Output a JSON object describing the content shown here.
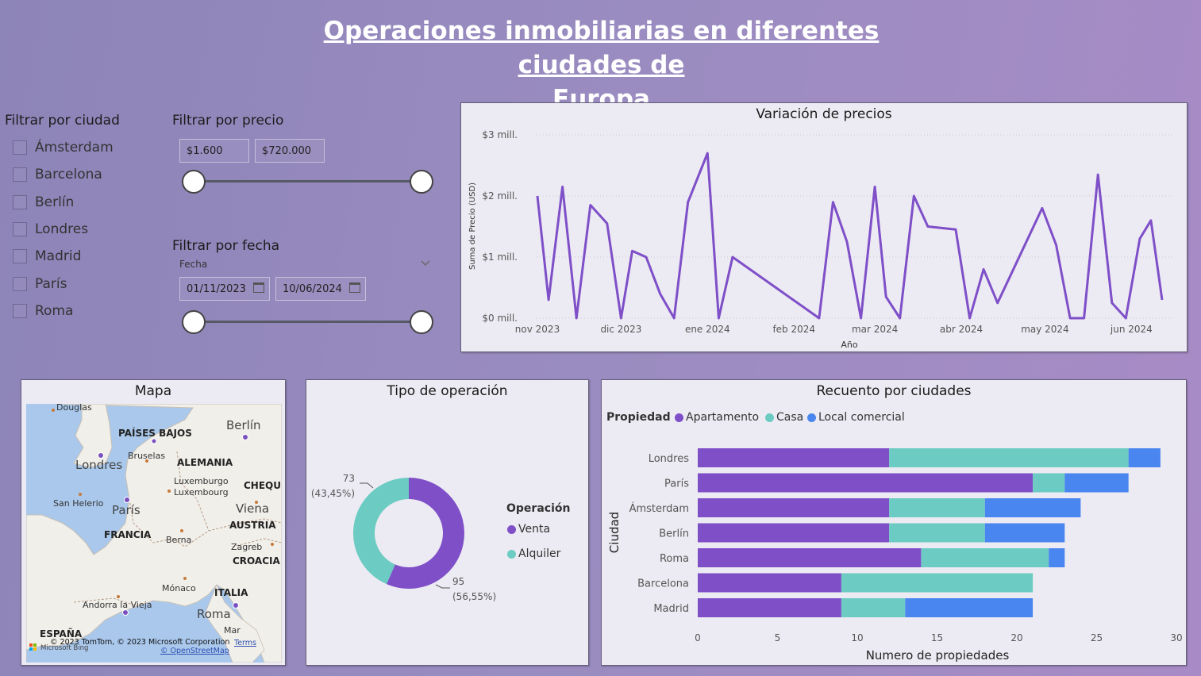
{
  "title_line1": "Operaciones inmobiliarias en diferentes ciudades de ",
  "title_line2": "Europa",
  "filters": {
    "city": {
      "label": "Filtrar por ciudad",
      "items": [
        "Ámsterdam",
        "Barcelona",
        "Berlín",
        "Londres",
        "Madrid",
        "París",
        "Roma"
      ]
    },
    "price": {
      "label": "Filtrar por precio",
      "min": "$1.600",
      "max": "$720.000"
    },
    "date": {
      "label": "Filtrar por fecha",
      "sublabel": "Fecha",
      "start": "01/11/2023",
      "end": "10/06/2024"
    }
  },
  "line_chart": {
    "title": "Variación de precios",
    "chart_data": {
      "type": "line",
      "title": "Variación de precios",
      "xlabel": "Año",
      "ylabel": "Suma de Precio (USD)",
      "y_ticks": [
        "$0 mill.",
        "$1 mill.",
        "$2 mill.",
        "$3 mill."
      ],
      "x_ticks": [
        "nov 2023",
        "dic 2023",
        "ene 2024",
        "feb 2024",
        "mar 2024",
        "abr 2024",
        "may 2024",
        "jun 2024"
      ],
      "ylim": [
        0,
        3
      ],
      "y_unit": "mill. USD",
      "color": "#7f4fc8",
      "points": [
        [
          "2023-11-01",
          2.0
        ],
        [
          "2023-11-05",
          0.3
        ],
        [
          "2023-11-10",
          2.15
        ],
        [
          "2023-11-15",
          0.0
        ],
        [
          "2023-11-20",
          1.85
        ],
        [
          "2023-11-26",
          1.55
        ],
        [
          "2023-12-01",
          0.0
        ],
        [
          "2023-12-05",
          1.1
        ],
        [
          "2023-12-10",
          1.0
        ],
        [
          "2023-12-15",
          0.4
        ],
        [
          "2023-12-20",
          0.0
        ],
        [
          "2023-12-25",
          1.9
        ],
        [
          "2024-01-01",
          2.7
        ],
        [
          "2024-01-05",
          0.0
        ],
        [
          "2024-01-10",
          1.0
        ],
        [
          "2024-02-10",
          0.0
        ],
        [
          "2024-02-15",
          1.9
        ],
        [
          "2024-02-20",
          1.25
        ],
        [
          "2024-02-25",
          0.0
        ],
        [
          "2024-03-01",
          2.15
        ],
        [
          "2024-03-05",
          0.35
        ],
        [
          "2024-03-10",
          0.0
        ],
        [
          "2024-03-15",
          2.0
        ],
        [
          "2024-03-20",
          1.5
        ],
        [
          "2024-03-30",
          1.45
        ],
        [
          "2024-04-04",
          0.0
        ],
        [
          "2024-04-09",
          0.8
        ],
        [
          "2024-04-14",
          0.25
        ],
        [
          "2024-04-30",
          1.8
        ],
        [
          "2024-05-05",
          1.2
        ],
        [
          "2024-05-10",
          0.0
        ],
        [
          "2024-05-15",
          0.0
        ],
        [
          "2024-05-20",
          2.35
        ],
        [
          "2024-05-25",
          0.25
        ],
        [
          "2024-05-30",
          0.0
        ],
        [
          "2024-06-04",
          1.3
        ],
        [
          "2024-06-08",
          1.6
        ],
        [
          "2024-06-12",
          0.3
        ]
      ]
    }
  },
  "map": {
    "title": "Mapa",
    "cities": [
      "Berlín",
      "Londres",
      "París",
      "Viena",
      "Roma"
    ],
    "countries": [
      "PAÍSES BAJOS",
      "ALEMANIA",
      "FRANCIA",
      "AUSTRIA",
      "CROACIA",
      "ITALIA",
      "ESPAÑA",
      "CHEQUI"
    ],
    "places": [
      "Douglas",
      "Bruselas",
      "Luxemburgo",
      "Luxembourg",
      "San Helerio",
      "Berna",
      "Zagreb",
      "Mónaco",
      "Andorra la Vieja",
      "Mar"
    ],
    "copyright": "© 2023 TomTom, © 2023 Microsoft Corporation",
    "terms": "Terms",
    "osm": "© OpenStreetMap",
    "bing": "Microsoft Bing",
    "water_color": "#a9c8ec",
    "land_color": "#f1efea"
  },
  "donut": {
    "title": "Tipo de operación",
    "legend_title": "Operación",
    "chart_data": {
      "type": "pie",
      "title": "Tipo de operación",
      "slices": [
        {
          "name": "Venta",
          "value": 95,
          "label": "95",
          "pct": "(56,55%)",
          "color": "#7f4fc8"
        },
        {
          "name": "Alquiler",
          "value": 73,
          "label": "73",
          "pct": "(43,45%)",
          "color": "#6ccbc2"
        }
      ]
    }
  },
  "bars": {
    "title": "Recuento por ciudades",
    "legend_title": "Propiedad",
    "chart_data": {
      "type": "bar",
      "orientation": "horizontal",
      "stacked": true,
      "title": "Recuento por ciudades",
      "xlabel": "Numero de propiedades",
      "ylabel": "Ciudad",
      "xlim": [
        0,
        30
      ],
      "x_ticks": [
        "0",
        "5",
        "10",
        "15",
        "20",
        "25",
        "30"
      ],
      "categories": [
        "Londres",
        "París",
        "Ámsterdam",
        "Berlín",
        "Roma",
        "Barcelona",
        "Madrid"
      ],
      "series": [
        {
          "name": "Apartamento",
          "color": "#7f4fc8",
          "values": [
            12,
            21,
            12,
            12,
            14,
            9,
            9
          ]
        },
        {
          "name": "Casa",
          "color": "#6ccbc2",
          "values": [
            15,
            2,
            6,
            6,
            8,
            12,
            4
          ]
        },
        {
          "name": "Local comercial",
          "color": "#4a86ef",
          "values": [
            2,
            4,
            6,
            5,
            1,
            0,
            8
          ]
        }
      ]
    }
  }
}
